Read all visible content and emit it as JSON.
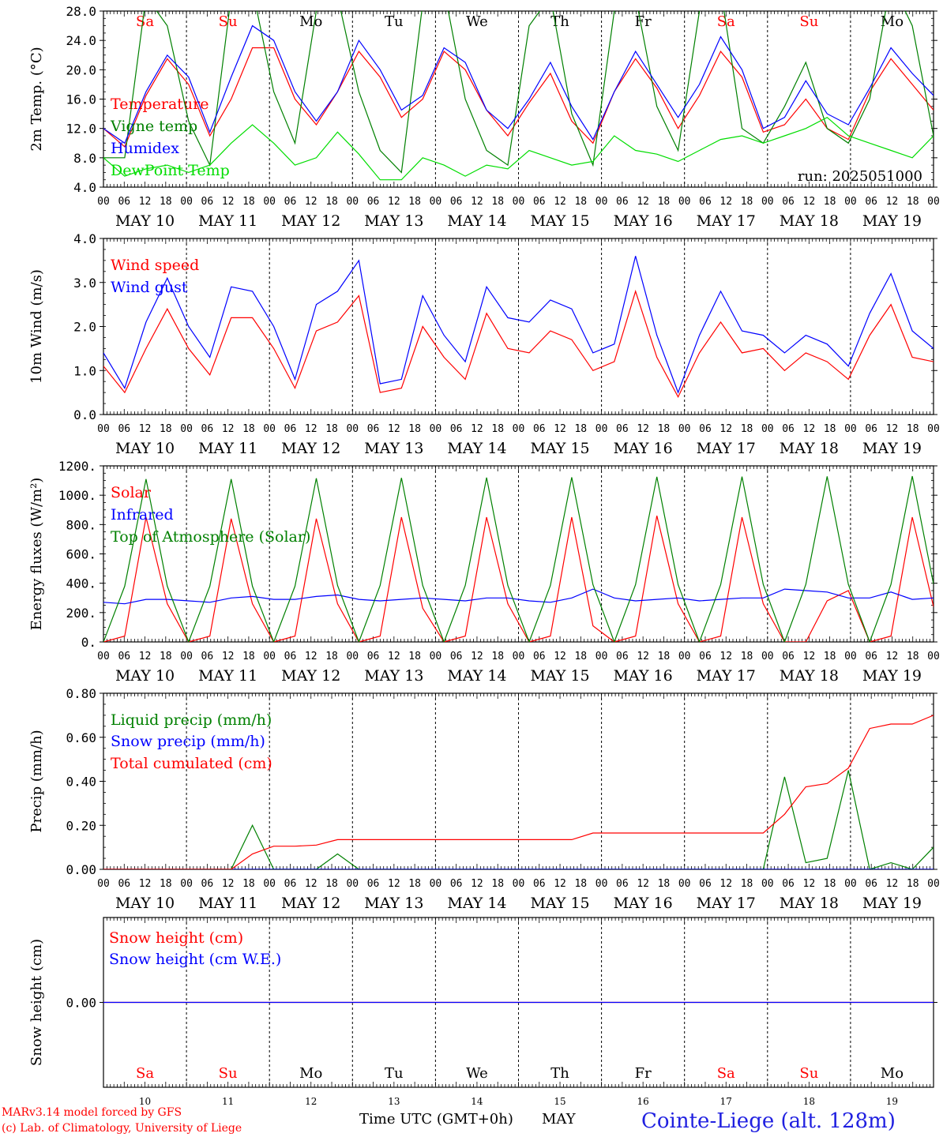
{
  "days": [
    {
      "dom": "10",
      "label": "MAY 10",
      "wd": "Sa",
      "weekend": true
    },
    {
      "dom": "11",
      "label": "MAY 11",
      "wd": "Su",
      "weekend": true
    },
    {
      "dom": "12",
      "label": "MAY 12",
      "wd": "Mo",
      "weekend": false
    },
    {
      "dom": "13",
      "label": "MAY 13",
      "wd": "Tu",
      "weekend": false
    },
    {
      "dom": "14",
      "label": "MAY 14",
      "wd": "We",
      "weekend": false
    },
    {
      "dom": "15",
      "label": "MAY 15",
      "wd": "Th",
      "weekend": false
    },
    {
      "dom": "16",
      "label": "MAY 16",
      "wd": "Fr",
      "weekend": false
    },
    {
      "dom": "17",
      "label": "MAY 17",
      "wd": "Sa",
      "weekend": true
    },
    {
      "dom": "18",
      "label": "MAY 18",
      "wd": "Su",
      "weekend": true
    },
    {
      "dom": "19",
      "label": "MAY 19",
      "wd": "Mo",
      "weekend": false
    }
  ],
  "hour_ticks": [
    "00",
    "06",
    "12",
    "18"
  ],
  "final_tick": "00",
  "colors": {
    "red": "#ff0000",
    "green": "#008000",
    "blue": "#0000ff",
    "lightgreen": "#00dd00",
    "axis": "#000000",
    "title": "#2020e0"
  },
  "footer": {
    "credit1": "MARv3.14 model forced by GFS",
    "credit2": "(c) Lab. of Climatology, University of Liege",
    "xtitle": "Time UTC (GMT+0h)",
    "month": "MAY",
    "station": "Cointe-Liege (alt. 128m)"
  },
  "chart_data": [
    {
      "id": "temp",
      "type": "line",
      "ylabel": "2m Temp. (°C)",
      "ylim": [
        4,
        28
      ],
      "yticks": [
        {
          "v": 4,
          "t": "4.0"
        },
        {
          "v": 8,
          "t": "8.0"
        },
        {
          "v": 12,
          "t": "12.0"
        },
        {
          "v": 16,
          "t": "16.0"
        },
        {
          "v": 20,
          "t": "20.0"
        },
        {
          "v": 24,
          "t": "24.0"
        },
        {
          "v": 28,
          "t": "28.0"
        }
      ],
      "weekday_labels": true,
      "annotation": "run: 2025051000",
      "x_hours_step": 6,
      "series": [
        {
          "name": "Temperature",
          "color": "#ff0000",
          "values": [
            12,
            9.5,
            16.5,
            21.5,
            18,
            11,
            16,
            23,
            23,
            16,
            12.5,
            17,
            22.5,
            19,
            13.5,
            16,
            22.5,
            20,
            14.5,
            11,
            15.5,
            19.5,
            13,
            10,
            17,
            21.5,
            17.5,
            12,
            16.5,
            22.5,
            19,
            11.5,
            12.5,
            16,
            12,
            10.5,
            17,
            21.5,
            18,
            14.5
          ]
        },
        {
          "name": "Vigne temp",
          "color": "#008000",
          "values": [
            8,
            8,
            30,
            26,
            13,
            7,
            30,
            31,
            17,
            10,
            28,
            30,
            17,
            9,
            6,
            29,
            31,
            16,
            9,
            7,
            26,
            30,
            14,
            7,
            28,
            30,
            15,
            9,
            28,
            31,
            12,
            10,
            15,
            21,
            12,
            10,
            16,
            32,
            26,
            11
          ]
        },
        {
          "name": "Humidex",
          "color": "#0000ff",
          "values": [
            12,
            10,
            17,
            22,
            19,
            11.5,
            19,
            26,
            24,
            17,
            13,
            17,
            24,
            20,
            14.5,
            16.5,
            23,
            21,
            14.5,
            12,
            16,
            21,
            15,
            10.5,
            17,
            22.5,
            18,
            13.5,
            18,
            24.5,
            20,
            12,
            13.5,
            18.5,
            14,
            12.5,
            17.5,
            23,
            19.5,
            16.5
          ]
        },
        {
          "name": "DewPoint Temp",
          "color": "#00dd00",
          "values": [
            8,
            5.5,
            6.5,
            7,
            6,
            7,
            10,
            12.5,
            10,
            7,
            8,
            11.5,
            8.5,
            5,
            5,
            8,
            7,
            5.5,
            7,
            6.5,
            9,
            8,
            7,
            7.5,
            11,
            9,
            8.5,
            7.5,
            9,
            10.5,
            11,
            10,
            11,
            12,
            13.5,
            11,
            10,
            9,
            8,
            11
          ]
        }
      ]
    },
    {
      "id": "wind",
      "type": "line",
      "ylabel": "10m Wind (m/s)",
      "ylim": [
        0,
        4
      ],
      "yticks": [
        {
          "v": 0,
          "t": "0.0"
        },
        {
          "v": 1,
          "t": "1.0"
        },
        {
          "v": 2,
          "t": "2.0"
        },
        {
          "v": 3,
          "t": "3.0"
        },
        {
          "v": 4,
          "t": "4.0"
        }
      ],
      "x_hours_step": 6,
      "series": [
        {
          "name": "Wind speed",
          "color": "#ff0000",
          "values": [
            1.1,
            0.5,
            1.5,
            2.4,
            1.5,
            0.9,
            2.2,
            2.2,
            1.5,
            0.6,
            1.9,
            2.1,
            2.7,
            0.5,
            0.6,
            2.0,
            1.3,
            0.8,
            2.3,
            1.5,
            1.4,
            1.9,
            1.7,
            1.0,
            1.2,
            2.8,
            1.3,
            0.4,
            1.4,
            2.1,
            1.4,
            1.5,
            1.0,
            1.4,
            1.2,
            0.8,
            1.8,
            2.5,
            1.3,
            1.2
          ]
        },
        {
          "name": "Wind gust",
          "color": "#0000ff",
          "values": [
            1.4,
            0.6,
            2.1,
            3.1,
            2.0,
            1.3,
            2.9,
            2.8,
            2.0,
            0.8,
            2.5,
            2.8,
            3.5,
            0.7,
            0.8,
            2.7,
            1.8,
            1.2,
            2.9,
            2.2,
            2.1,
            2.6,
            2.4,
            1.4,
            1.6,
            3.6,
            1.8,
            0.5,
            1.8,
            2.8,
            1.9,
            1.8,
            1.4,
            1.8,
            1.6,
            1.1,
            2.3,
            3.2,
            1.9,
            1.5
          ]
        }
      ]
    },
    {
      "id": "flux",
      "type": "line",
      "ylabel": "Energy fluxes (W/m²)",
      "ylim": [
        0,
        1200
      ],
      "yticks": [
        {
          "v": 0,
          "t": "0."
        },
        {
          "v": 200,
          "t": "200."
        },
        {
          "v": 400,
          "t": "400."
        },
        {
          "v": 600,
          "t": "600."
        },
        {
          "v": 800,
          "t": "800."
        },
        {
          "v": 1000,
          "t": "1000."
        },
        {
          "v": 1200,
          "t": "1200."
        }
      ],
      "x_hours_step": 6,
      "series": [
        {
          "name": "Solar",
          "color": "#ff0000",
          "values": [
            0,
            40,
            850,
            260,
            0,
            40,
            840,
            260,
            0,
            40,
            840,
            260,
            0,
            40,
            850,
            230,
            0,
            40,
            850,
            260,
            0,
            40,
            850,
            110,
            0,
            40,
            860,
            260,
            0,
            40,
            850,
            260,
            0,
            0,
            280,
            350,
            0,
            40,
            850,
            240
          ]
        },
        {
          "name": "Infrared",
          "color": "#0000ff",
          "values": [
            270,
            260,
            290,
            290,
            280,
            270,
            300,
            310,
            290,
            290,
            310,
            320,
            290,
            280,
            290,
            300,
            290,
            280,
            300,
            300,
            280,
            270,
            300,
            360,
            300,
            280,
            290,
            300,
            280,
            290,
            300,
            300,
            360,
            350,
            340,
            300,
            300,
            340,
            290,
            300
          ]
        },
        {
          "name": "Top of Atmosphere (Solar)",
          "color": "#008000",
          "values": [
            0,
            380,
            1110,
            380,
            0,
            380,
            1110,
            380,
            0,
            380,
            1115,
            385,
            0,
            385,
            1118,
            385,
            0,
            385,
            1120,
            385,
            0,
            385,
            1122,
            390,
            0,
            390,
            1125,
            390,
            0,
            390,
            1127,
            392,
            0,
            392,
            1128,
            392,
            0,
            392,
            1130,
            394
          ]
        }
      ]
    },
    {
      "id": "precip",
      "type": "line",
      "ylabel": "Precip (mm/h)",
      "ylim": [
        0,
        0.8
      ],
      "yticks": [
        {
          "v": 0,
          "t": "0.00"
        },
        {
          "v": 0.2,
          "t": "0.20"
        },
        {
          "v": 0.4,
          "t": "0.40"
        },
        {
          "v": 0.6,
          "t": "0.60"
        },
        {
          "v": 0.8,
          "t": "0.80"
        }
      ],
      "x_hours_step": 6,
      "series": [
        {
          "name": "Liquid precip (mm/h)",
          "color": "#008000",
          "values": [
            0,
            0,
            0,
            0,
            0,
            0,
            0,
            0.2,
            0,
            0,
            0,
            0.07,
            0,
            0,
            0,
            0,
            0,
            0,
            0,
            0,
            0,
            0,
            0,
            0,
            0,
            0,
            0,
            0,
            0,
            0,
            0,
            0,
            0.42,
            0.03,
            0.05,
            0.45,
            0,
            0.03,
            0,
            0.1
          ]
        },
        {
          "name": "Snow precip (mm/h)",
          "color": "#0000ff",
          "values": [
            0,
            0,
            0,
            0,
            0,
            0,
            0,
            0,
            0,
            0,
            0,
            0,
            0,
            0,
            0,
            0,
            0,
            0,
            0,
            0,
            0,
            0,
            0,
            0,
            0,
            0,
            0,
            0,
            0,
            0,
            0,
            0,
            0,
            0,
            0,
            0,
            0,
            0,
            0,
            0
          ]
        },
        {
          "name": "Total cumulated (cm)",
          "color": "#ff0000",
          "values": [
            0,
            0,
            0,
            0,
            0,
            0,
            0,
            0.07,
            0.105,
            0.105,
            0.11,
            0.135,
            0.135,
            0.135,
            0.135,
            0.135,
            0.135,
            0.135,
            0.135,
            0.135,
            0.135,
            0.135,
            0.135,
            0.165,
            0.165,
            0.165,
            0.165,
            0.165,
            0.165,
            0.165,
            0.165,
            0.165,
            0.25,
            0.375,
            0.39,
            0.46,
            0.64,
            0.66,
            0.66,
            0.7
          ]
        }
      ]
    },
    {
      "id": "snow",
      "type": "line",
      "ylabel": "Snow height (cm)",
      "ylim": [
        -1,
        1
      ],
      "yticks": [
        {
          "v": 0,
          "t": "0.00"
        }
      ],
      "weekday_labels_bottom": true,
      "x_hours_step": 6,
      "series": [
        {
          "name": "Snow height (cm)",
          "color": "#ff0000",
          "values": [
            0,
            0
          ]
        },
        {
          "name": "Snow height (cm W.E.)",
          "color": "#0000ff",
          "values": [
            0,
            0
          ]
        }
      ]
    }
  ]
}
